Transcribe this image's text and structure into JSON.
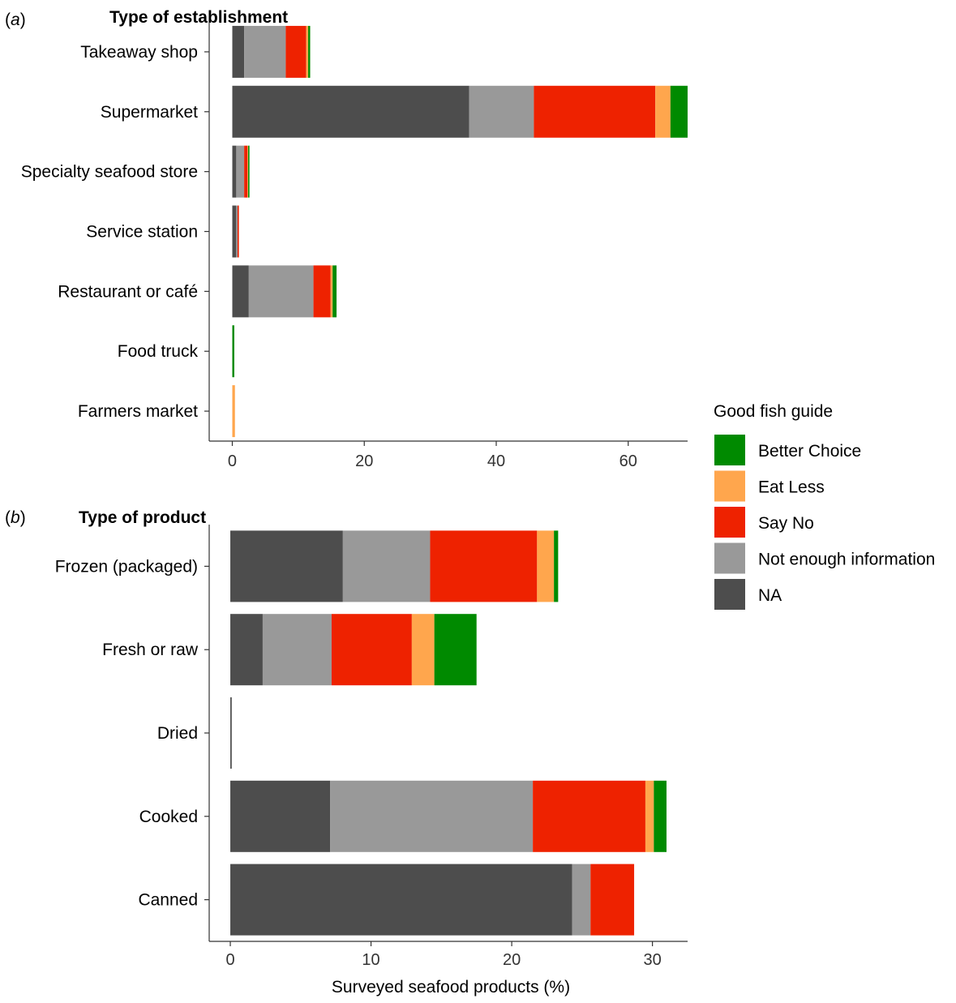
{
  "chart_data": [
    {
      "type": "bar",
      "orientation": "horizontal",
      "stacked": true,
      "panel_tag": "(a)",
      "panel_tag_letter": "a",
      "title": "Type of establishment",
      "categories": [
        "Takeaway shop",
        "Supermarket",
        "Specialty seafood store",
        "Service station",
        "Restaurant or café",
        "Food truck",
        "Farmers market"
      ],
      "series": [
        {
          "name": "NA",
          "values": [
            1.8,
            35.9,
            0.6,
            0.6,
            2.5,
            0,
            0
          ]
        },
        {
          "name": "Not enough information",
          "values": [
            6.3,
            9.8,
            1.2,
            0.2,
            9.8,
            0,
            0
          ]
        },
        {
          "name": "Say No",
          "values": [
            3.1,
            18.4,
            0.5,
            0.2,
            2.6,
            0,
            0
          ]
        },
        {
          "name": "Eat Less",
          "values": [
            0.3,
            2.3,
            0.1,
            0,
            0.3,
            0,
            0.4
          ]
        },
        {
          "name": "Better Choice",
          "values": [
            0.3,
            2.6,
            0.2,
            0,
            0.6,
            0.3,
            0
          ]
        }
      ],
      "xlim": [
        -3.5,
        69
      ],
      "xticks": [
        0,
        20,
        40,
        60
      ],
      "xlabel": ""
    },
    {
      "type": "bar",
      "orientation": "horizontal",
      "stacked": true,
      "panel_tag": "(b)",
      "panel_tag_letter": "b",
      "title": "Type of product",
      "categories": [
        "Frozen (packaged)",
        "Fresh or raw",
        "Dried",
        "Cooked",
        "Canned"
      ],
      "series": [
        {
          "name": "NA",
          "values": [
            8.0,
            2.3,
            0.1,
            7.1,
            24.3
          ]
        },
        {
          "name": "Not enough information",
          "values": [
            6.2,
            4.9,
            0,
            14.4,
            1.3
          ]
        },
        {
          "name": "Say No",
          "values": [
            7.6,
            5.7,
            0,
            8.0,
            3.1
          ]
        },
        {
          "name": "Eat Less",
          "values": [
            1.2,
            1.6,
            0,
            0.6,
            0
          ]
        },
        {
          "name": "Better Choice",
          "values": [
            0.3,
            3.0,
            0,
            0.9,
            0
          ]
        }
      ],
      "xlim": [
        -1.5,
        32.5
      ],
      "xticks": [
        0,
        10,
        20,
        30
      ],
      "xlabel": "Surveyed seafood products (%)"
    }
  ],
  "legend": {
    "title": "Good fish guide",
    "items": [
      {
        "name": "Better Choice",
        "color": "#008a00"
      },
      {
        "name": "Eat Less",
        "color": "#ffa64d"
      },
      {
        "name": "Say No",
        "color": "#ee2200"
      },
      {
        "name": "Not enough information",
        "color": "#999999"
      },
      {
        "name": "NA",
        "color": "#4d4d4d"
      }
    ]
  }
}
